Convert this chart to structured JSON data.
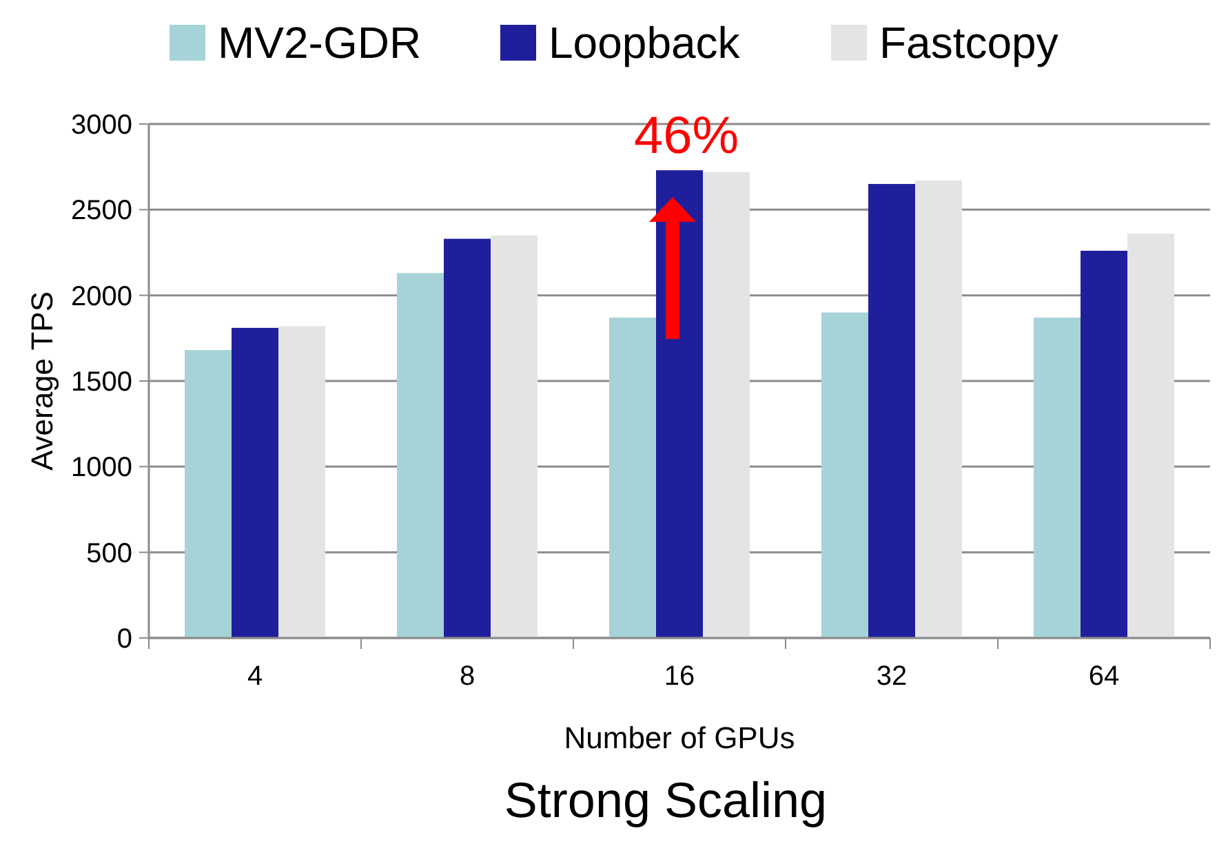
{
  "chart_data": {
    "type": "bar",
    "title": "Strong Scaling",
    "xlabel": "Number of GPUs",
    "ylabel": "Average TPS",
    "categories": [
      "4",
      "8",
      "16",
      "32",
      "64"
    ],
    "series": [
      {
        "name": "MV2-GDR",
        "color": "#a6d3d7",
        "values": [
          1680,
          2130,
          1870,
          1900,
          1870
        ]
      },
      {
        "name": "Loopback",
        "color": "#1f1f9c",
        "values": [
          1810,
          2330,
          2730,
          2650,
          2260
        ]
      },
      {
        "name": "Fastcopy",
        "color": "#e4e4e4",
        "values": [
          1820,
          2350,
          2720,
          2670,
          2360
        ]
      }
    ],
    "ylim": [
      0,
      3000
    ],
    "yticks": [
      0,
      500,
      1000,
      1500,
      2000,
      2500,
      3000
    ],
    "grid": "y",
    "legend": "top",
    "annotations": [
      "46%"
    ]
  }
}
